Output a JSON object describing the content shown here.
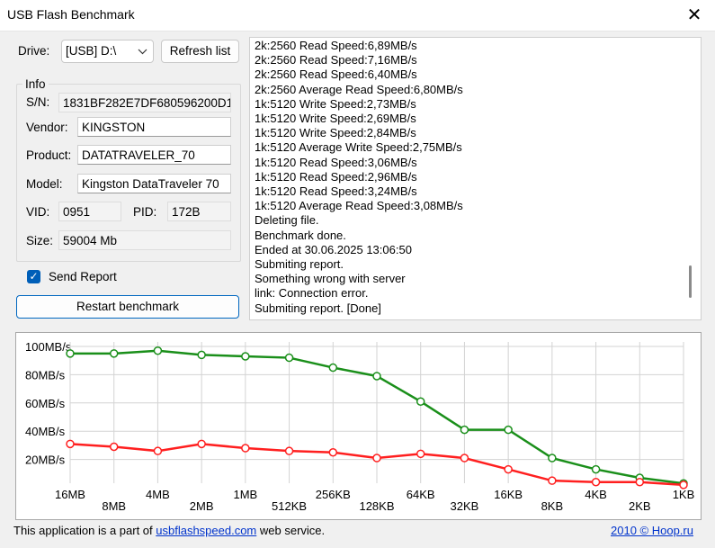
{
  "window": {
    "title": "USB Flash Benchmark",
    "close_glyph": "✕"
  },
  "drive": {
    "label": "Drive:",
    "value": "[USB] D:\\",
    "refresh_label": "Refresh list"
  },
  "info": {
    "group_label": "Info",
    "sn_label": "S/N:",
    "sn_value": "1831BF282E7DF680596200D1",
    "vendor_label": "Vendor:",
    "vendor_value": "KINGSTON",
    "product_label": "Product:",
    "product_value": "DATATRAVELER_70",
    "model_label": "Model:",
    "model_value": "Kingston DataTraveler 70",
    "vid_label": "VID:",
    "vid_value": "0951",
    "pid_label": "PID:",
    "pid_value": "172B",
    "size_label": "Size:",
    "size_value": "59004 Mb"
  },
  "send_report": {
    "label": "Send Report",
    "checked": true
  },
  "restart_label": "Restart benchmark",
  "log_lines": [
    "2k:2560 Read Speed:6,89MB/s",
    "2k:2560 Read Speed:7,16MB/s",
    "2k:2560 Read Speed:6,40MB/s",
    "2k:2560 Average Read Speed:6,80MB/s",
    "1k:5120 Write Speed:2,73MB/s",
    "1k:5120 Write Speed:2,69MB/s",
    "1k:5120 Write Speed:2,84MB/s",
    "1k:5120 Average Write Speed:2,75MB/s",
    "1k:5120 Read Speed:3,06MB/s",
    "1k:5120 Read Speed:2,96MB/s",
    "1k:5120 Read Speed:3,24MB/s",
    "1k:5120 Average Read Speed:3,08MB/s",
    "Deleting file.",
    "Benchmark done.",
    "Ended at 30.06.2025 13:06:50",
    "Submiting report.",
    "Something wrong with server",
    "link: Connection error.",
    "Submiting report. [Done]"
  ],
  "chart_data": {
    "type": "line",
    "categories": [
      "16MB",
      "8MB",
      "4MB",
      "2MB",
      "1MB",
      "512KB",
      "256KB",
      "128KB",
      "64KB",
      "32KB",
      "16KB",
      "8KB",
      "4KB",
      "2KB",
      "1KB"
    ],
    "y_ticks": [
      "100MB/s",
      "80MB/s",
      "60MB/s",
      "40MB/s",
      "20MB/s"
    ],
    "ylim": [
      0,
      100
    ],
    "grid": true,
    "series": [
      {
        "color": "#1a8f1a",
        "values": [
          95,
          95,
          97,
          94,
          93,
          92,
          85,
          79,
          61,
          41,
          41,
          21,
          13,
          7,
          3
        ]
      },
      {
        "color": "#ff1f1f",
        "values": [
          31,
          29,
          26,
          31,
          28,
          26,
          25,
          21,
          24,
          21,
          13,
          5,
          4,
          4,
          2
        ]
      }
    ]
  },
  "footer": {
    "prefix": "This application is a part of ",
    "link": "usbflashspeed.com",
    "suffix": " web service.",
    "right": "2010 © Hoop.ru"
  }
}
